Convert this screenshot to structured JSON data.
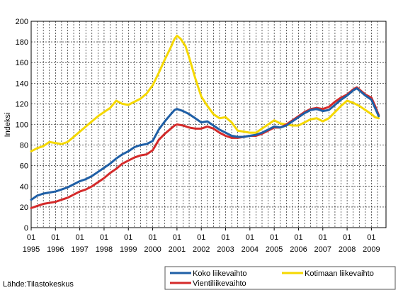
{
  "chart_data": {
    "type": "line",
    "ylabel": "Indeksi",
    "ylim": [
      0,
      200
    ],
    "yticks": [
      0,
      20,
      40,
      60,
      80,
      100,
      120,
      140,
      160,
      180,
      200
    ],
    "xlim": [
      1995.0,
      2009.6
    ],
    "xticks_top": [
      "01",
      "01",
      "01",
      "01",
      "01",
      "01",
      "01",
      "01",
      "01",
      "01",
      "01",
      "01",
      "01",
      "01",
      "01"
    ],
    "xticks_bottom": [
      "1995",
      "1996",
      "1997",
      "1998",
      "1999",
      "2000",
      "2001",
      "2002",
      "2003",
      "2004",
      "2005",
      "2006",
      "2007",
      "2008",
      "2009"
    ],
    "grid": "dashed",
    "legend_position": "bottom-right",
    "series": [
      {
        "name": "Koko liikevaihto",
        "color": "#1f5fa6",
        "points": [
          [
            1995.0,
            27
          ],
          [
            1995.25,
            31
          ],
          [
            1995.5,
            33
          ],
          [
            1995.75,
            34
          ],
          [
            1996.0,
            35
          ],
          [
            1996.25,
            37
          ],
          [
            1996.5,
            39
          ],
          [
            1996.75,
            42
          ],
          [
            1997.0,
            45
          ],
          [
            1997.25,
            47
          ],
          [
            1997.5,
            50
          ],
          [
            1997.75,
            54
          ],
          [
            1998.0,
            58
          ],
          [
            1998.25,
            62
          ],
          [
            1998.5,
            67
          ],
          [
            1998.75,
            71
          ],
          [
            1999.0,
            74
          ],
          [
            1999.25,
            78
          ],
          [
            1999.5,
            80
          ],
          [
            1999.75,
            81
          ],
          [
            2000.0,
            84
          ],
          [
            2000.25,
            95
          ],
          [
            2000.5,
            103
          ],
          [
            2000.75,
            110
          ],
          [
            2000.9,
            114
          ],
          [
            2001.0,
            115
          ],
          [
            2001.25,
            113
          ],
          [
            2001.5,
            110
          ],
          [
            2001.75,
            106
          ],
          [
            2002.0,
            102
          ],
          [
            2002.25,
            103
          ],
          [
            2002.5,
            99
          ],
          [
            2002.75,
            95
          ],
          [
            2003.0,
            92
          ],
          [
            2003.25,
            89
          ],
          [
            2003.5,
            88
          ],
          [
            2003.75,
            88
          ],
          [
            2004.0,
            89
          ],
          [
            2004.25,
            90
          ],
          [
            2004.5,
            92
          ],
          [
            2004.75,
            95
          ],
          [
            2005.0,
            98
          ],
          [
            2005.25,
            97
          ],
          [
            2005.5,
            99
          ],
          [
            2005.75,
            103
          ],
          [
            2006.0,
            107
          ],
          [
            2006.25,
            111
          ],
          [
            2006.5,
            114
          ],
          [
            2006.75,
            115
          ],
          [
            2007.0,
            113
          ],
          [
            2007.25,
            114
          ],
          [
            2007.5,
            119
          ],
          [
            2007.75,
            124
          ],
          [
            2008.0,
            128
          ],
          [
            2008.25,
            133
          ],
          [
            2008.4,
            135
          ],
          [
            2008.5,
            133
          ],
          [
            2008.75,
            128
          ],
          [
            2009.0,
            124
          ],
          [
            2009.15,
            116
          ],
          [
            2009.3,
            108
          ]
        ]
      },
      {
        "name": "Vientiliikevaihto",
        "color": "#d42a2a",
        "points": [
          [
            1995.0,
            19
          ],
          [
            1995.25,
            21
          ],
          [
            1995.5,
            23
          ],
          [
            1995.75,
            24
          ],
          [
            1996.0,
            25
          ],
          [
            1996.25,
            27
          ],
          [
            1996.5,
            29
          ],
          [
            1996.75,
            32
          ],
          [
            1997.0,
            35
          ],
          [
            1997.25,
            37
          ],
          [
            1997.5,
            40
          ],
          [
            1997.75,
            44
          ],
          [
            1998.0,
            48
          ],
          [
            1998.25,
            53
          ],
          [
            1998.5,
            57
          ],
          [
            1998.75,
            62
          ],
          [
            1999.0,
            65
          ],
          [
            1999.25,
            68
          ],
          [
            1999.5,
            70
          ],
          [
            1999.75,
            71
          ],
          [
            2000.0,
            75
          ],
          [
            2000.25,
            85
          ],
          [
            2000.5,
            91
          ],
          [
            2000.75,
            96
          ],
          [
            2000.9,
            99
          ],
          [
            2001.0,
            100
          ],
          [
            2001.25,
            99
          ],
          [
            2001.5,
            97
          ],
          [
            2001.75,
            96
          ],
          [
            2002.0,
            96
          ],
          [
            2002.25,
            98
          ],
          [
            2002.5,
            96
          ],
          [
            2002.75,
            92
          ],
          [
            2003.0,
            89
          ],
          [
            2003.25,
            87
          ],
          [
            2003.5,
            87
          ],
          [
            2003.75,
            88
          ],
          [
            2004.0,
            89
          ],
          [
            2004.25,
            89
          ],
          [
            2004.5,
            91
          ],
          [
            2004.75,
            94
          ],
          [
            2005.0,
            97
          ],
          [
            2005.25,
            97
          ],
          [
            2005.5,
            100
          ],
          [
            2005.75,
            104
          ],
          [
            2006.0,
            108
          ],
          [
            2006.25,
            112
          ],
          [
            2006.5,
            115
          ],
          [
            2006.75,
            116
          ],
          [
            2007.0,
            115
          ],
          [
            2007.25,
            117
          ],
          [
            2007.5,
            122
          ],
          [
            2007.75,
            126
          ],
          [
            2008.0,
            129
          ],
          [
            2008.25,
            134
          ],
          [
            2008.4,
            136
          ],
          [
            2008.5,
            134
          ],
          [
            2008.75,
            129
          ],
          [
            2009.0,
            126
          ],
          [
            2009.15,
            118
          ],
          [
            2009.3,
            109
          ]
        ]
      },
      {
        "name": "Kotimaan liikevaihto",
        "color": "#f5d800",
        "points": [
          [
            1995.0,
            74
          ],
          [
            1995.25,
            77
          ],
          [
            1995.5,
            79
          ],
          [
            1995.75,
            83
          ],
          [
            1996.0,
            82
          ],
          [
            1996.25,
            81
          ],
          [
            1996.5,
            83
          ],
          [
            1996.75,
            88
          ],
          [
            1997.0,
            93
          ],
          [
            1997.25,
            98
          ],
          [
            1997.5,
            103
          ],
          [
            1997.75,
            108
          ],
          [
            1998.0,
            112
          ],
          [
            1998.25,
            116
          ],
          [
            1998.5,
            123
          ],
          [
            1998.75,
            120
          ],
          [
            1999.0,
            119
          ],
          [
            1999.25,
            122
          ],
          [
            1999.5,
            125
          ],
          [
            1999.75,
            130
          ],
          [
            2000.0,
            138
          ],
          [
            2000.25,
            150
          ],
          [
            2000.5,
            163
          ],
          [
            2000.75,
            175
          ],
          [
            2000.9,
            183
          ],
          [
            2001.0,
            186
          ],
          [
            2001.15,
            183
          ],
          [
            2001.35,
            176
          ],
          [
            2001.5,
            165
          ],
          [
            2001.75,
            145
          ],
          [
            2002.0,
            127
          ],
          [
            2002.25,
            118
          ],
          [
            2002.5,
            110
          ],
          [
            2002.75,
            106
          ],
          [
            2003.0,
            107
          ],
          [
            2003.25,
            102
          ],
          [
            2003.5,
            94
          ],
          [
            2003.75,
            93
          ],
          [
            2004.0,
            92
          ],
          [
            2004.25,
            92
          ],
          [
            2004.5,
            96
          ],
          [
            2004.75,
            100
          ],
          [
            2005.0,
            104
          ],
          [
            2005.25,
            101
          ],
          [
            2005.5,
            100
          ],
          [
            2005.75,
            99
          ],
          [
            2006.0,
            99
          ],
          [
            2006.25,
            102
          ],
          [
            2006.5,
            105
          ],
          [
            2006.75,
            106
          ],
          [
            2007.0,
            103
          ],
          [
            2007.25,
            106
          ],
          [
            2007.5,
            112
          ],
          [
            2007.75,
            118
          ],
          [
            2008.0,
            123
          ],
          [
            2008.25,
            121
          ],
          [
            2008.5,
            118
          ],
          [
            2008.75,
            114
          ],
          [
            2009.0,
            110
          ],
          [
            2009.15,
            107
          ],
          [
            2009.3,
            106
          ]
        ]
      }
    ]
  },
  "source_label": "Lähde:Tilastokeskus"
}
